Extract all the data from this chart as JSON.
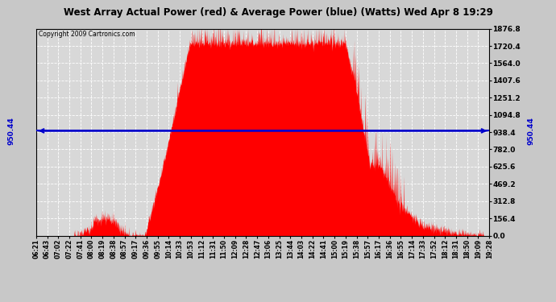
{
  "title": "West Array Actual Power (red) & Average Power (blue) (Watts) Wed Apr 8 19:29",
  "copyright": "Copyright 2009 Cartronics.com",
  "avg_power": 950.44,
  "ymax": 1876.8,
  "ymin": 0.0,
  "yticks": [
    0.0,
    156.4,
    312.8,
    469.2,
    625.6,
    782.0,
    938.4,
    1094.8,
    1251.2,
    1407.6,
    1564.0,
    1720.4,
    1876.8
  ],
  "bg_color": "#c8c8c8",
  "plot_bg_color": "#d8d8d8",
  "fill_color": "#ff0000",
  "line_color": "#0000cc",
  "title_bg": "#ffffff",
  "xtick_labels": [
    "06:21",
    "06:43",
    "07:02",
    "07:22",
    "07:41",
    "08:00",
    "08:19",
    "08:38",
    "08:57",
    "09:17",
    "09:36",
    "09:55",
    "10:14",
    "10:33",
    "10:53",
    "11:12",
    "11:31",
    "11:50",
    "12:09",
    "12:28",
    "12:47",
    "13:06",
    "13:25",
    "13:44",
    "14:03",
    "14:22",
    "14:41",
    "15:00",
    "15:19",
    "15:38",
    "15:57",
    "16:17",
    "16:36",
    "16:55",
    "17:14",
    "17:33",
    "17:52",
    "18:12",
    "18:31",
    "18:50",
    "19:09",
    "19:28"
  ]
}
